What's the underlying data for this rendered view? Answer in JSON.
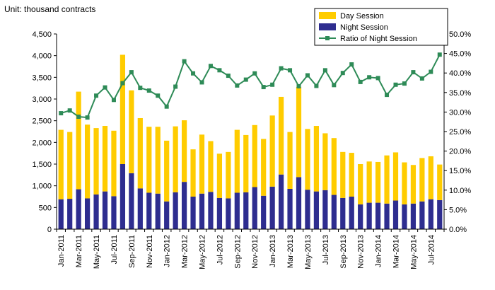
{
  "chart_data": {
    "type": "bar",
    "stacked": true,
    "unit_label": "Unit: thousand contracts",
    "categories": [
      "Jan-2011",
      "Feb-2011",
      "Mar-2011",
      "Apr-2011",
      "May-2011",
      "Jun-2011",
      "Jul-2011",
      "Aug-2011",
      "Sep-2011",
      "Oct-2011",
      "Nov-2011",
      "Dec-2011",
      "Jan-2012",
      "Feb-2012",
      "Mar-2012",
      "Apr-2012",
      "May-2012",
      "Jun-2012",
      "Jul-2012",
      "Aug-2012",
      "Sep-2012",
      "Oct-2012",
      "Nov-2012",
      "Dec-2012",
      "Jan-2013",
      "Feb-2013",
      "Mar-2013",
      "Apr-2013",
      "May-2013",
      "Jun-2013",
      "Jul-2013",
      "Aug-2013",
      "Sep-2013",
      "Oct-2013",
      "Nov-2013",
      "Dec-2013",
      "Jan-2014",
      "Feb-2014",
      "Mar-2014",
      "Apr-2014",
      "May-2014",
      "Jun-2014",
      "Jul-2014",
      "Aug-2014"
    ],
    "x_tick_labels": [
      "Jan-2011",
      "Mar-2011",
      "May-2011",
      "Jul-2011",
      "Sep-2011",
      "Nov-2011",
      "Jan-2012",
      "Mar-2012",
      "May-2012",
      "Jul-2012",
      "Sep-2012",
      "Nov-2012",
      "Jan-2013",
      "Mar-2013",
      "May-2013",
      "Jul-2013",
      "Sep-2013",
      "Nov-2013",
      "Jan-2014",
      "Mar-2014",
      "May-2014",
      "Jul-2014"
    ],
    "series": [
      {
        "name": "Night Session",
        "kind": "bar",
        "color": "#2e2d8f",
        "values": [
          690,
          700,
          920,
          710,
          800,
          870,
          760,
          1500,
          1290,
          940,
          840,
          820,
          640,
          850,
          1090,
          750,
          820,
          860,
          720,
          710,
          840,
          850,
          970,
          770,
          980,
          1260,
          930,
          1200,
          910,
          870,
          900,
          790,
          720,
          750,
          570,
          610,
          610,
          590,
          660,
          570,
          590,
          640,
          690,
          670
        ]
      },
      {
        "name": "Day Session",
        "kind": "bar",
        "color": "#ffcc00",
        "values": [
          1600,
          1540,
          2250,
          1700,
          1530,
          1510,
          1510,
          2520,
          1910,
          1620,
          1520,
          1540,
          1400,
          1520,
          1420,
          1090,
          1360,
          1170,
          1020,
          1070,
          1450,
          1320,
          1430,
          1310,
          1640,
          1790,
          1310,
          2080,
          1400,
          1510,
          1310,
          1310,
          1060,
          1010,
          930,
          950,
          940,
          1110,
          1110,
          970,
          890,
          1000,
          990,
          820
        ]
      },
      {
        "name": "Ratio of Night Session",
        "kind": "line",
        "color": "#2e8b57",
        "axis": "right",
        "values": [
          29.7,
          30.4,
          28.8,
          28.6,
          34.2,
          36.3,
          33.1,
          37.4,
          40.2,
          36.2,
          35.5,
          34.2,
          31.4,
          36.5,
          43.0,
          39.9,
          37.6,
          41.8,
          40.7,
          39.3,
          36.8,
          38.3,
          39.9,
          36.4,
          37.0,
          41.2,
          40.7,
          36.6,
          39.4,
          36.7,
          40.7,
          36.9,
          40.0,
          42.2,
          37.7,
          38.9,
          38.7,
          34.4,
          37.0,
          37.3,
          40.2,
          38.6,
          40.3,
          44.7
        ]
      }
    ],
    "y_left": {
      "min": 0,
      "max": 4500,
      "step": 500,
      "tick_labels": [
        "0",
        "500",
        "1,000",
        "1,500",
        "2,000",
        "2,500",
        "3,000",
        "3,500",
        "4,000",
        "4,500"
      ]
    },
    "y_right": {
      "min": 0,
      "max": 50,
      "step": 5,
      "tick_labels": [
        "0.0%",
        "5.0%",
        "10.0%",
        "15.0%",
        "20.0%",
        "25.0%",
        "30.0%",
        "35.0%",
        "40.0%",
        "45.0%",
        "50.0%"
      ]
    },
    "legend": {
      "position": "top-right",
      "entries": [
        "Day Session",
        "Night Session",
        "Ratio of Night Session"
      ]
    },
    "grid": false
  }
}
